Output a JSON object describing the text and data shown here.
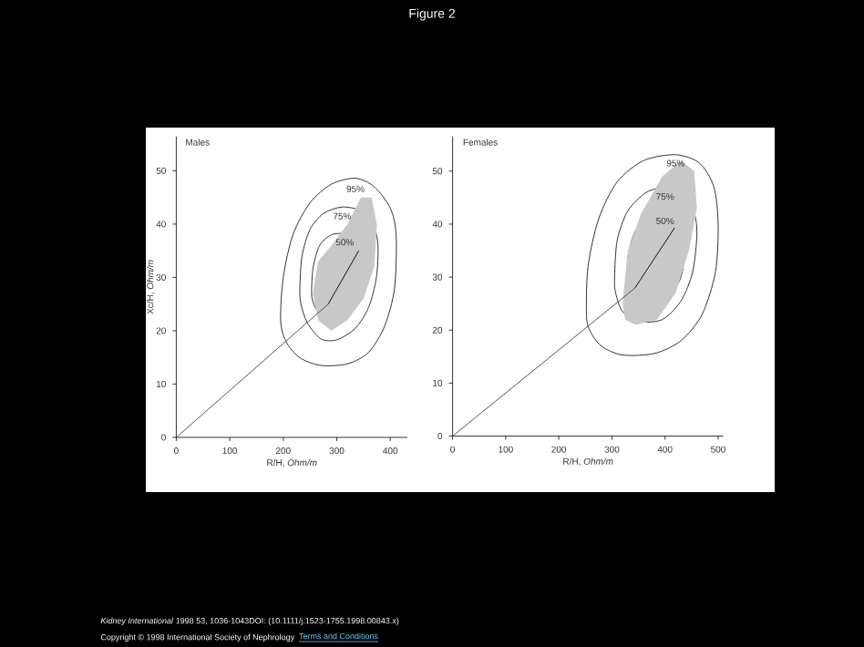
{
  "chart_data": [
    {
      "type": "line",
      "title": "Males",
      "xlabel": "R/H, *Ohm/m*",
      "ylabel": "Xc/H, *Ohm/m*",
      "annotations": [
        "Figure 2",
        "*Kidney International* 1998 53, 1036-1043DOI: (10.1111/j.1523-1755.1998.00843.x)",
        "Copyright © 1998 International Society of Nephrology",
        "Terms and Conditions",
        "95%",
        "75%",
        "50%"
      ],
      "xlim": [
        0,
        432
      ],
      "ylim": [
        0,
        56.4
      ],
      "xticks": [
        0,
        100,
        200,
        300,
        400
      ],
      "yticks": [
        0,
        10,
        20,
        30,
        40,
        50
      ],
      "marker": "none",
      "line_style": "solid",
      "series": [
        {
          "type": "area",
          "color": "#c8c8c8",
          "x": [
            255,
            265,
            290,
            320,
            345,
            365,
            375,
            370,
            350,
            320,
            290,
            265,
            255
          ],
          "values": [
            27,
            33,
            36,
            40,
            45,
            45,
            40,
            32,
            26,
            22,
            20,
            22,
            27
          ]
        },
        {
          "color": "#555555",
          "x": [
            0,
            284
          ],
          "values": [
            0,
            25
          ]
        },
        {
          "color": "#111111",
          "x": [
            284,
            341
          ],
          "values": [
            25,
            35
          ]
        }
      ]
    },
    {
      "type": "line",
      "title": "Females",
      "xlabel": "R/H, *Ohm/m*",
      "annotations": [
        "95%",
        "75%",
        "50%"
      ],
      "xlim": [
        0,
        510
      ],
      "ylim": [
        0,
        56.5
      ],
      "xticks": [
        0,
        100,
        200,
        300,
        400,
        500
      ],
      "yticks": [
        0,
        10,
        20,
        30,
        40,
        50
      ],
      "marker": "none",
      "line_style": "solid",
      "series": [
        {
          "type": "area",
          "color": "#c8c8c8",
          "x": [
            320,
            330,
            355,
            395,
            430,
            455,
            460,
            445,
            420,
            385,
            345,
            325,
            320
          ],
          "values": [
            25,
            35,
            42,
            49,
            52,
            50,
            43,
            35,
            27,
            22,
            21,
            22,
            25
          ]
        },
        {
          "color": "#555555",
          "x": [
            0,
            343
          ],
          "values": [
            0,
            27.9
          ]
        },
        {
          "color": "#111111",
          "x": [
            343,
            418
          ],
          "values": [
            27.9,
            39.3
          ]
        }
      ]
    }
  ]
}
